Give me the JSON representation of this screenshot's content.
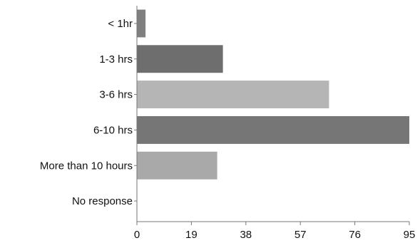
{
  "chart_data": {
    "type": "bar",
    "orientation": "horizontal",
    "categories": [
      "< 1hr",
      "1-3 hrs",
      "3-6 hrs",
      "6-10 hrs",
      "More than 10 hours",
      "No response"
    ],
    "values": [
      3,
      30,
      67,
      95,
      28,
      0
    ],
    "bar_colors": [
      "#808080",
      "#6e6e6e",
      "#b5b5b5",
      "#767676",
      "#a9a9a9",
      "#9a9a9a"
    ],
    "xlim": [
      0,
      95
    ],
    "xticks": [
      0,
      19,
      38,
      57,
      76,
      95
    ],
    "xtick_labels": [
      "0",
      "19",
      "38",
      "57",
      "76",
      "95"
    ],
    "grid": false,
    "legend": "none"
  }
}
